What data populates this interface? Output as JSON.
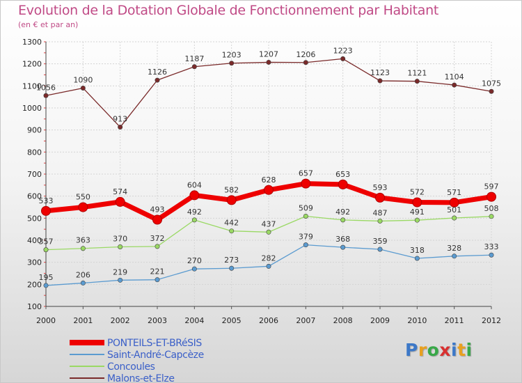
{
  "chart_data": {
    "type": "line",
    "title": "Evolution de la Dotation Globale de Fonctionnement par Habitant",
    "subtitle": "(en € et par an)",
    "xlabel": "",
    "ylabel": "",
    "x": [
      "2000",
      "2001",
      "2002",
      "2003",
      "2004",
      "2005",
      "2006",
      "2007",
      "2008",
      "2009",
      "2010",
      "2011",
      "2012"
    ],
    "ylim": [
      100,
      1300
    ],
    "yticks": [
      100,
      200,
      300,
      400,
      500,
      600,
      700,
      800,
      900,
      1000,
      1100,
      1200,
      1300
    ],
    "grid": true,
    "legend_position": "bottom-left",
    "series": [
      {
        "name": "PONTEILS-ET-BRéSIS",
        "color": "#ee0000",
        "values": [
          533,
          550,
          574,
          493,
          604,
          582,
          628,
          657,
          653,
          593,
          572,
          571,
          597
        ]
      },
      {
        "name": "Saint-André-Capcèze",
        "color": "#5b9bd0",
        "values": [
          195,
          206,
          219,
          221,
          270,
          273,
          282,
          379,
          368,
          359,
          318,
          328,
          333
        ]
      },
      {
        "name": "Concoules",
        "color": "#9ad964",
        "values": [
          357,
          363,
          370,
          372,
          492,
          442,
          437,
          509,
          492,
          487,
          491,
          501,
          508
        ]
      },
      {
        "name": "Malons-et-Elze",
        "color": "#7a2a2a",
        "values": [
          1056,
          1090,
          913,
          1126,
          1187,
          1203,
          1207,
          1206,
          1223,
          1123,
          1121,
          1104,
          1075
        ]
      }
    ]
  },
  "logo": {
    "letters": [
      "P",
      "r",
      "o",
      "x",
      "i",
      "t",
      "i"
    ],
    "colors": [
      "#3c78c8",
      "#e8a020",
      "#38a848",
      "#d83030",
      "#3c78c8",
      "#e8a020",
      "#38a848"
    ]
  }
}
